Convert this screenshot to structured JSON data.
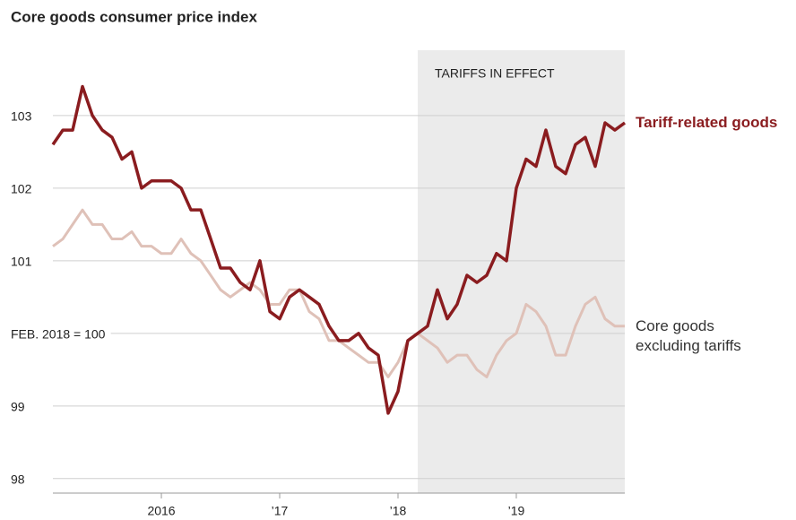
{
  "chart_data": {
    "type": "line",
    "title": "Core goods consumer price index",
    "x": [
      2015.083,
      2015.167,
      2015.25,
      2015.333,
      2015.417,
      2015.5,
      2015.583,
      2015.667,
      2015.75,
      2015.833,
      2015.917,
      2016,
      2016.083,
      2016.167,
      2016.25,
      2016.333,
      2016.417,
      2016.5,
      2016.583,
      2016.667,
      2016.75,
      2016.833,
      2016.917,
      2017,
      2017.083,
      2017.167,
      2017.25,
      2017.333,
      2017.417,
      2017.5,
      2017.583,
      2017.667,
      2017.75,
      2017.833,
      2017.917,
      2018,
      2018.083,
      2018.167,
      2018.25,
      2018.333,
      2018.417,
      2018.5,
      2018.583,
      2018.667,
      2018.75,
      2018.833,
      2018.917,
      2019,
      2019.083,
      2019.167,
      2019.25,
      2019.333,
      2019.417,
      2019.5,
      2019.583,
      2019.667,
      2019.75,
      2019.833,
      2019.917
    ],
    "series": [
      {
        "name": "Core goods excluding tariffs",
        "color": "#dfc1b8",
        "values": [
          101.2,
          101.3,
          101.5,
          101.7,
          101.5,
          101.5,
          101.3,
          101.3,
          101.4,
          101.2,
          101.2,
          101.1,
          101.1,
          101.3,
          101.1,
          101.0,
          100.8,
          100.6,
          100.5,
          100.6,
          100.7,
          100.6,
          100.4,
          100.4,
          100.6,
          100.6,
          100.3,
          100.2,
          99.9,
          99.9,
          99.8,
          99.7,
          99.6,
          99.6,
          99.4,
          99.6,
          99.9,
          100.0,
          99.9,
          99.8,
          99.6,
          99.7,
          99.7,
          99.5,
          99.4,
          99.7,
          99.9,
          100.0,
          100.4,
          100.3,
          100.1,
          99.7,
          99.7,
          100.1,
          100.4,
          100.5,
          100.2,
          100.1,
          100.1
        ]
      },
      {
        "name": "Tariff-related goods",
        "color": "#8a1c1f",
        "values": [
          102.6,
          102.8,
          102.8,
          103.4,
          103.0,
          102.8,
          102.7,
          102.4,
          102.5,
          102.0,
          102.1,
          102.1,
          102.1,
          102.0,
          101.7,
          101.7,
          101.3,
          100.9,
          100.9,
          100.7,
          100.6,
          101.0,
          100.3,
          100.2,
          100.5,
          100.6,
          100.5,
          100.4,
          100.1,
          99.9,
          99.9,
          100.0,
          99.8,
          99.7,
          98.9,
          99.2,
          99.9,
          100.0,
          100.1,
          100.6,
          100.2,
          100.4,
          100.8,
          100.7,
          100.8,
          101.1,
          101.0,
          102.0,
          102.4,
          102.3,
          102.8,
          102.3,
          102.2,
          102.6,
          102.7,
          102.3,
          102.9,
          102.8,
          102.9
        ]
      }
    ],
    "xlim": [
      2015.083,
      2019.917
    ],
    "ylim": [
      97.8,
      103.9
    ],
    "xticks": [
      {
        "value": 2016,
        "label": "2016"
      },
      {
        "value": 2017,
        "label": "’17"
      },
      {
        "value": 2018,
        "label": "’18"
      },
      {
        "value": 2019,
        "label": "’19"
      }
    ],
    "yticks": [
      98,
      99,
      {
        "value": 100,
        "label": "FEB. 2018 = 100"
      },
      101,
      102,
      103
    ],
    "grid": true,
    "shade": {
      "range": [
        2018.167,
        2019.917
      ],
      "label": "TARIFFS IN EFFECT"
    }
  }
}
